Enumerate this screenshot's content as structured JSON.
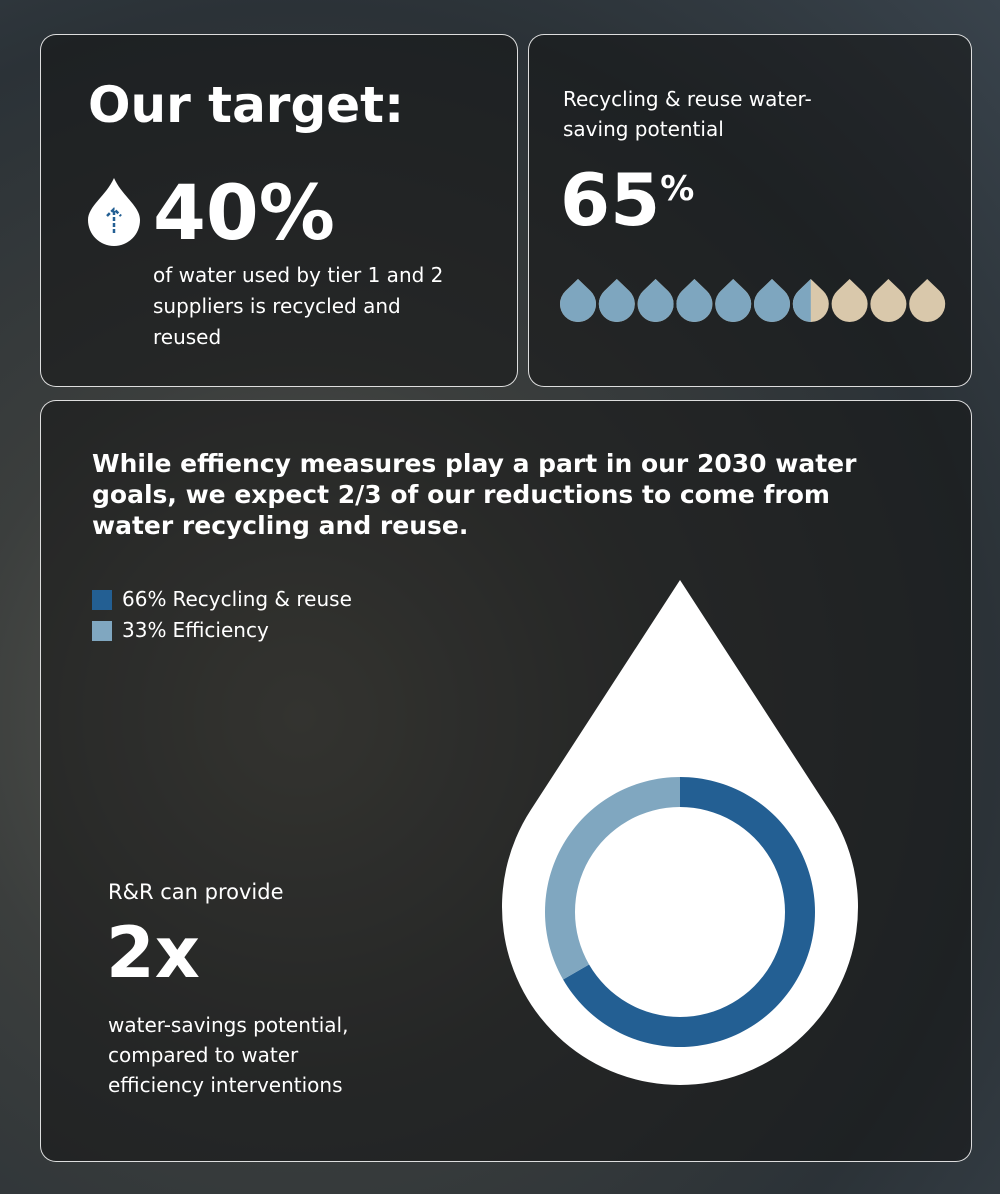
{
  "target": {
    "heading": "Our target:",
    "value": "40%",
    "description": "of water used by tier 1 and 2 suppliers is recycled and reused"
  },
  "potential": {
    "label": "Recycling & reuse water-saving potential",
    "value": 65,
    "unit": "%",
    "filled_color": "#7ea6bf",
    "empty_color": "#d9c8ab"
  },
  "chart_data": {
    "type": "donut",
    "title": "While effiency measures play a part in our 2030 water goals, we expect 2/3 of our reductions to come from water recycling and reuse.",
    "categories": [
      "Recycling & reuse",
      "Efficiency"
    ],
    "values": [
      66,
      33
    ],
    "value_labels": [
      "66%",
      "33%"
    ],
    "colors": [
      "#235f93",
      "#80a7c0"
    ]
  },
  "callout": {
    "intro": "R&R can provide",
    "value": "2x",
    "description": "water-savings potential, compared to water efficiency interventions"
  }
}
